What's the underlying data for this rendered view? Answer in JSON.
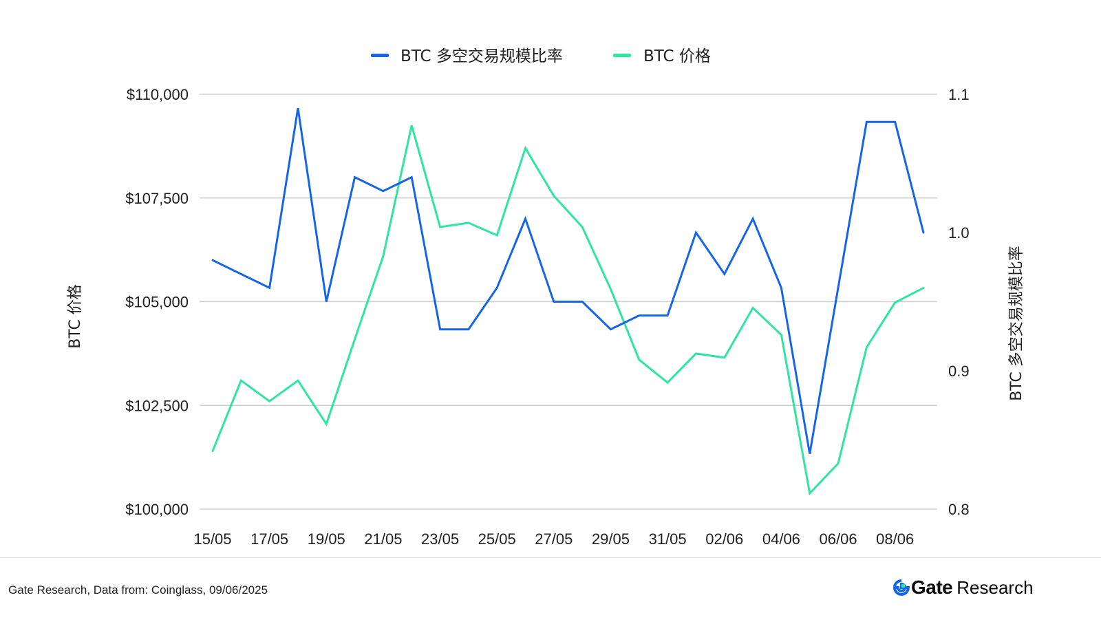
{
  "chart_data": {
    "type": "line",
    "x": [
      "15/05",
      "16/05",
      "17/05",
      "18/05",
      "19/05",
      "20/05",
      "21/05",
      "22/05",
      "23/05",
      "24/05",
      "25/05",
      "26/05",
      "27/05",
      "28/05",
      "29/05",
      "30/05",
      "31/05",
      "01/06",
      "02/06",
      "03/06",
      "04/06",
      "05/06",
      "06/06",
      "07/06",
      "08/06",
      "09/06"
    ],
    "x_tick_labels": [
      "15/05",
      "17/05",
      "19/05",
      "21/05",
      "23/05",
      "25/05",
      "27/05",
      "29/05",
      "31/05",
      "02/06",
      "04/06",
      "06/06",
      "08/06"
    ],
    "series": [
      {
        "name": "BTC 多空交易规模比率",
        "axis": "right",
        "color": "#1565e8",
        "values": [
          0.98,
          0.97,
          0.96,
          1.09,
          0.95,
          1.04,
          1.03,
          1.04,
          0.93,
          0.93,
          0.96,
          1.01,
          0.95,
          0.95,
          0.93,
          0.94,
          0.94,
          1.0,
          0.97,
          1.01,
          0.96,
          0.84,
          0.96,
          1.08,
          1.08,
          1.0
        ]
      },
      {
        "name": "BTC 价格",
        "axis": "left",
        "color": "#2ee6a0",
        "values": [
          101400,
          103100,
          102600,
          103100,
          102050,
          104100,
          106100,
          109250,
          106800,
          106900,
          106600,
          108700,
          107550,
          106800,
          105300,
          103600,
          103050,
          103750,
          103650,
          104850,
          104200,
          100380,
          101100,
          103900,
          104980,
          105330
        ]
      }
    ],
    "y_left": {
      "label": "BTC 价格",
      "lim": [
        100000,
        110000
      ],
      "ticks": [
        100000,
        102500,
        105000,
        107500,
        110000
      ],
      "tick_labels": [
        "$100,000",
        "$102,500",
        "$105,000",
        "$107,500",
        "$110,000"
      ]
    },
    "y_right": {
      "label": "BTC 多空交易规模比率",
      "lim": [
        0.8,
        1.1
      ],
      "ticks": [
        0.8,
        0.9,
        1.0,
        1.1
      ],
      "tick_labels": [
        "0.8",
        "0.9",
        "1.0",
        "1.1"
      ]
    },
    "grid": true,
    "legend": "top-center"
  },
  "footer": {
    "source": "Gate Research, Data from: Coinglass, 09/06/2025",
    "brand_name": "Gate",
    "brand_suffix": "Research"
  },
  "colors": {
    "gridline": "#d0d0d0",
    "brand_blue": "#1565e8",
    "brand_green": "#2ee6a0"
  }
}
